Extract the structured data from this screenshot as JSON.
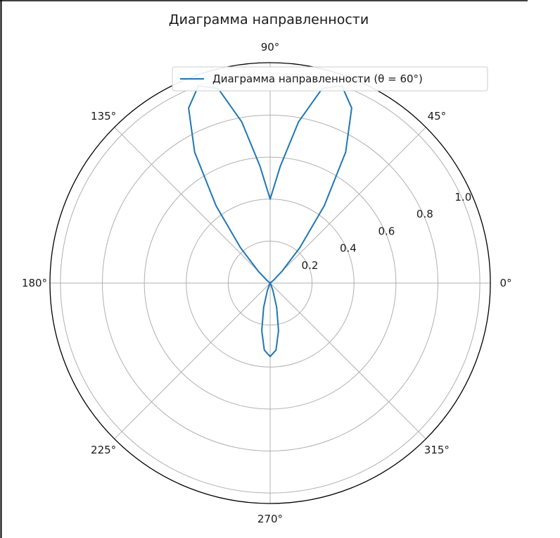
{
  "chart_data": {
    "type": "line",
    "projection": "polar",
    "title": "Диаграмма направленности",
    "angle_tick_labels": [
      "0°",
      "45°",
      "90°",
      "135°",
      "180°",
      "225°",
      "270°",
      "315°"
    ],
    "angle_ticks_deg": [
      0,
      45,
      90,
      135,
      180,
      225,
      270,
      315
    ],
    "radial_tick_labels": [
      "0.2",
      "0.4",
      "0.6",
      "0.8",
      "1.0"
    ],
    "radial_ticks": [
      0.2,
      0.4,
      0.6,
      0.8,
      1.0
    ],
    "rlim": [
      0,
      1.05
    ],
    "grid": true,
    "legend_position": "top-right",
    "color": "#1f77b4",
    "series": [
      {
        "name": "Диаграмма направленности (θ = 60°)",
        "theta_deg": [
          0,
          5,
          10,
          15,
          20,
          25,
          30,
          35,
          40,
          45,
          50,
          55,
          60,
          65,
          70,
          75,
          80,
          85,
          90,
          95,
          100,
          105,
          110,
          115,
          120,
          125,
          130,
          135,
          140,
          145,
          150,
          155,
          160,
          165,
          170,
          175,
          180,
          185,
          190,
          195,
          200,
          205,
          210,
          215,
          220,
          225,
          230,
          235,
          240,
          245,
          250,
          255,
          260,
          265,
          270,
          275,
          280,
          285,
          290,
          295,
          300,
          305,
          310,
          315,
          320,
          325,
          330,
          335,
          340,
          345,
          350,
          355,
          360
        ],
        "r": [
          0,
          0,
          0,
          0,
          0,
          0,
          0,
          0,
          0.02,
          0.08,
          0.22,
          0.45,
          0.72,
          0.92,
          1.0,
          0.96,
          0.78,
          0.56,
          0.4,
          0.56,
          0.78,
          0.96,
          1.0,
          0.92,
          0.72,
          0.45,
          0.22,
          0.08,
          0.02,
          0,
          0,
          0,
          0,
          0,
          0,
          0,
          0,
          0,
          0,
          0,
          0,
          0,
          0,
          0,
          0,
          0,
          0,
          0,
          0,
          0.01,
          0.04,
          0.12,
          0.23,
          0.32,
          0.35,
          0.32,
          0.23,
          0.12,
          0.04,
          0.01,
          0,
          0,
          0,
          0,
          0,
          0,
          0,
          0,
          0,
          0,
          0,
          0,
          0
        ]
      }
    ]
  }
}
